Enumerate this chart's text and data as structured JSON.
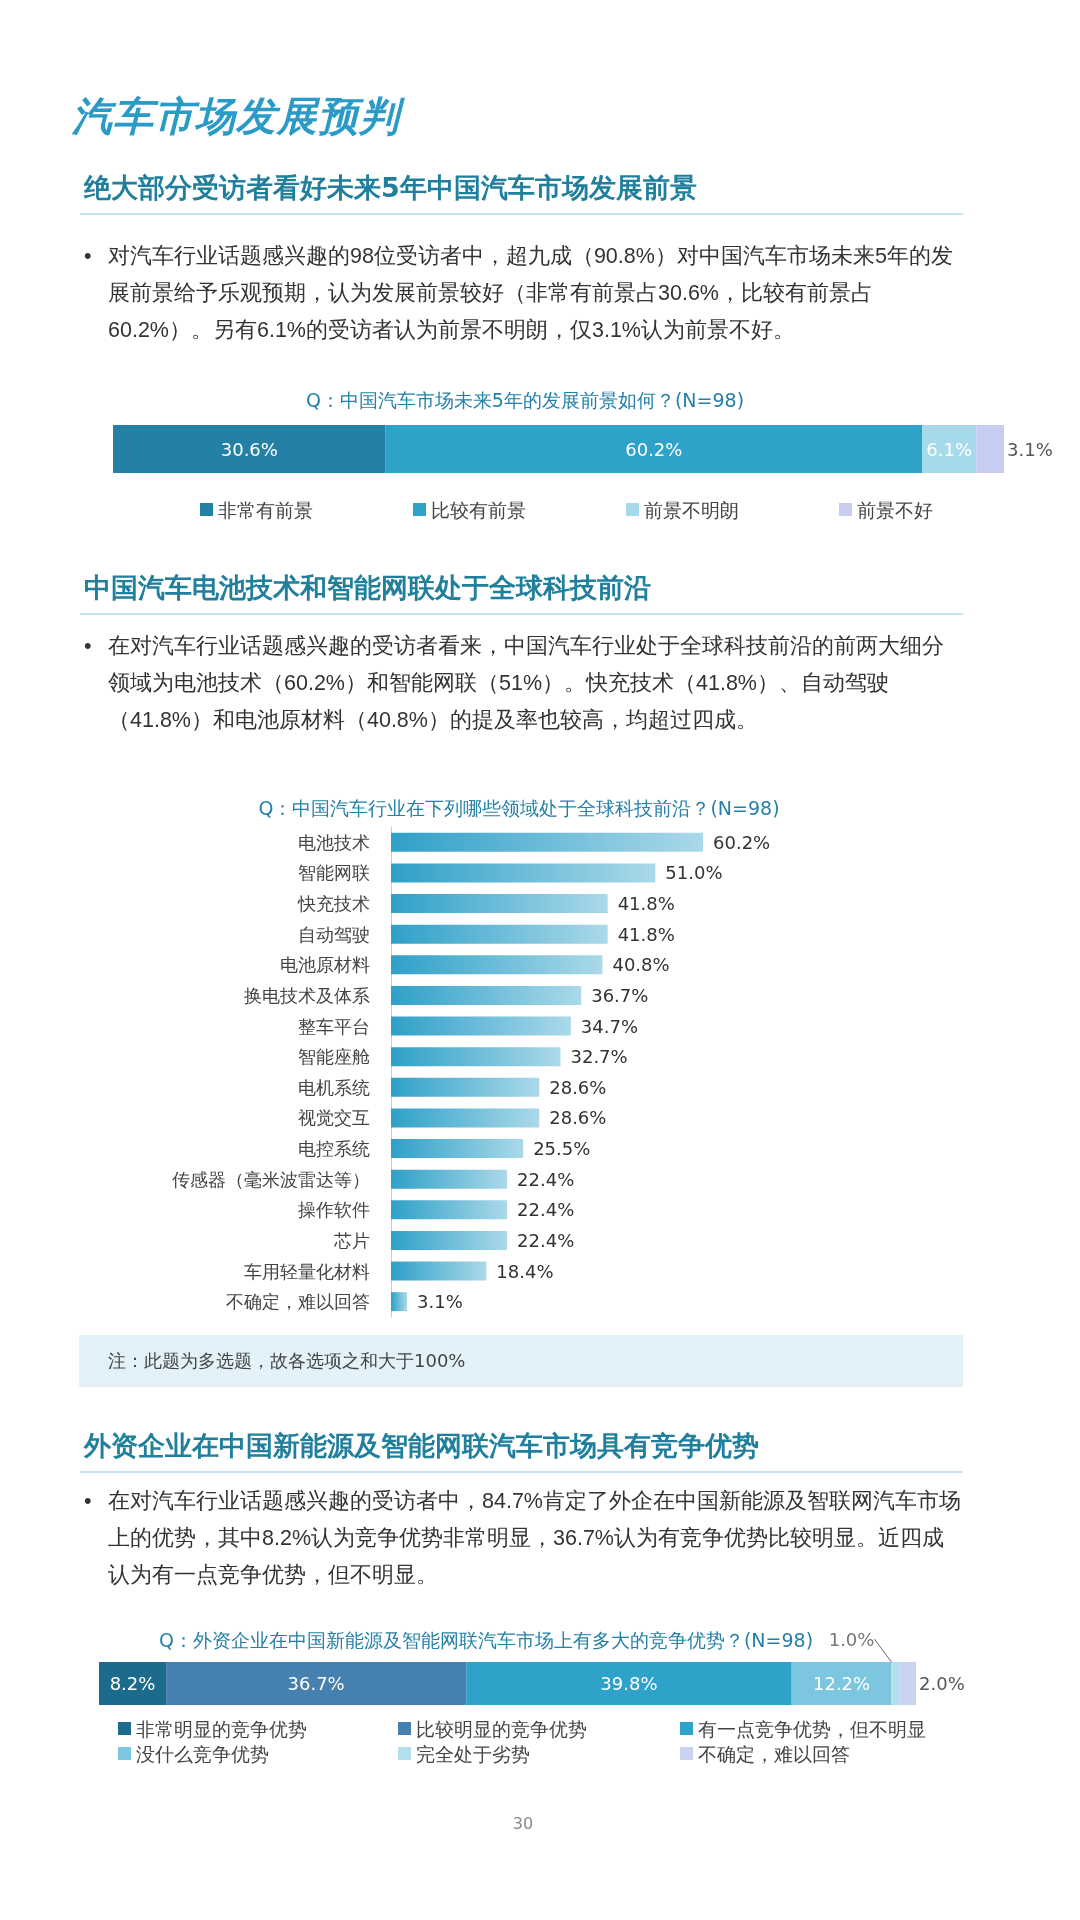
{
  "chart_data": [
    {
      "type": "bar",
      "orientation": "horizontal",
      "stacked": true,
      "title": "Q：中国汽车市场未来5年的发展前景如何？(N=98)",
      "annotations": [
        "汽车市场发展预判",
        "绝大部分受访者看好未来5年中国汽车市场发展前景",
        "• 对汽车行业话题感兴趣的98位受访者中，超九成（90.8%）对中国汽车市场未来5年的发展前景给予乐观预期，认为发展前景较好（非常有前景占30.6%，比较有前景占60.2%）。另有6.1%的受访者认为前景不明朗，仅3.1%认为前景不好。"
      ],
      "categories": [
        null
      ],
      "series": [
        {
          "name": "非常有前景",
          "color": "#2580a6",
          "values": [
            30.6
          ],
          "value_labels": [
            "30.6%"
          ]
        },
        {
          "name": "比较有前景",
          "color": "#2ea2c9",
          "values": [
            60.2
          ],
          "value_labels": [
            "60.2%"
          ]
        },
        {
          "name": "前景不明朗",
          "color": "#a6daea",
          "values": [
            6.1
          ],
          "value_labels": [
            "6.1%"
          ]
        },
        {
          "name": "前景不好",
          "color": "#c6cdf1",
          "values": [
            3.1
          ],
          "value_labels": [
            "3.1%"
          ]
        }
      ],
      "legend": "bottom",
      "tick_labels": false
    },
    {
      "type": "bar",
      "orientation": "horizontal",
      "title": "Q：中国汽车行业在下列哪些领域处于全球科技前沿？(N=98)",
      "annotations": [
        "中国汽车电池技术和智能网联处于全球科技前沿",
        "• 在对汽车行业话题感兴趣的受访者看来，中国汽车行业处于全球科技前沿的前两大细分领域为电池技术（60.2%）和智能网联（51%）。快充技术（41.8%）、自动驾驶（41.8%）和电池原材料（40.8%）的提及率也较高，均超过四成。",
        "注：此题为多选题，故各选项之和大于100%"
      ],
      "categories": [
        "电池技术",
        "智能网联",
        "快充技术",
        "自动驾驶",
        "电池原材料",
        "换电技术及体系",
        "整车平台",
        "智能座舱",
        "电机系统",
        "视觉交互",
        "电控系统",
        "传感器（毫米波雷达等）",
        "操作软件",
        "芯片",
        "车用轻量化材料",
        "不确定，难以回答"
      ],
      "values": [
        60.2,
        51.0,
        41.8,
        41.8,
        40.8,
        36.7,
        34.7,
        32.7,
        28.6,
        28.6,
        25.5,
        22.4,
        22.4,
        22.4,
        18.4,
        3.1
      ],
      "value_labels": [
        "60.2%",
        "51.0%",
        "41.8%",
        "41.8%",
        "40.8%",
        "36.7%",
        "34.7%",
        "32.7%",
        "28.6%",
        "28.6%",
        "25.5%",
        "22.4%",
        "22.4%",
        "22.4%",
        "18.4%",
        "3.1%"
      ],
      "color": "#2ea0c8",
      "tick_labels": "y"
    },
    {
      "type": "bar",
      "orientation": "horizontal",
      "stacked": true,
      "title": "Q：外资企业在中国新能源及智能网联汽车市场上有多大的竞争优势？(N=98)",
      "annotations": [
        "外资企业在中国新能源及智能网联汽车市场具有竞争优势",
        "• 在对汽车行业话题感兴趣的受访者中，84.7%肯定了外企在中国新能源及智联网汽车市场上的优势，其中8.2%认为竞争优势非常明显，36.7%认为有竞争优势比较明显。近四成认为有一点竞争优势，但不明显。",
        "30"
      ],
      "categories": [
        null
      ],
      "series": [
        {
          "name": "非常明显的竞争优势",
          "color": "#1c6b8d",
          "values": [
            8.2
          ],
          "value_labels": [
            "8.2%"
          ]
        },
        {
          "name": "比较明显的竞争优势",
          "color": "#4680ae",
          "values": [
            36.7
          ],
          "value_labels": [
            "36.7%"
          ]
        },
        {
          "name": "有一点竞争优势，但不明显",
          "color": "#2ea2c9",
          "values": [
            39.8
          ],
          "value_labels": [
            "39.8%"
          ]
        },
        {
          "name": "没什么竞争优势",
          "color": "#7dc6df",
          "values": [
            12.2
          ],
          "value_labels": [
            "12.2%"
          ]
        },
        {
          "name": "完全处于劣势",
          "color": "#b3dfed",
          "values": [
            1.0
          ],
          "value_labels": [
            "1.0%"
          ]
        },
        {
          "name": "不确定，难以回答",
          "color": "#cad2f2",
          "values": [
            2.0
          ],
          "value_labels": [
            "2.0%"
          ]
        }
      ],
      "legend": "bottom",
      "tick_labels": false
    }
  ]
}
